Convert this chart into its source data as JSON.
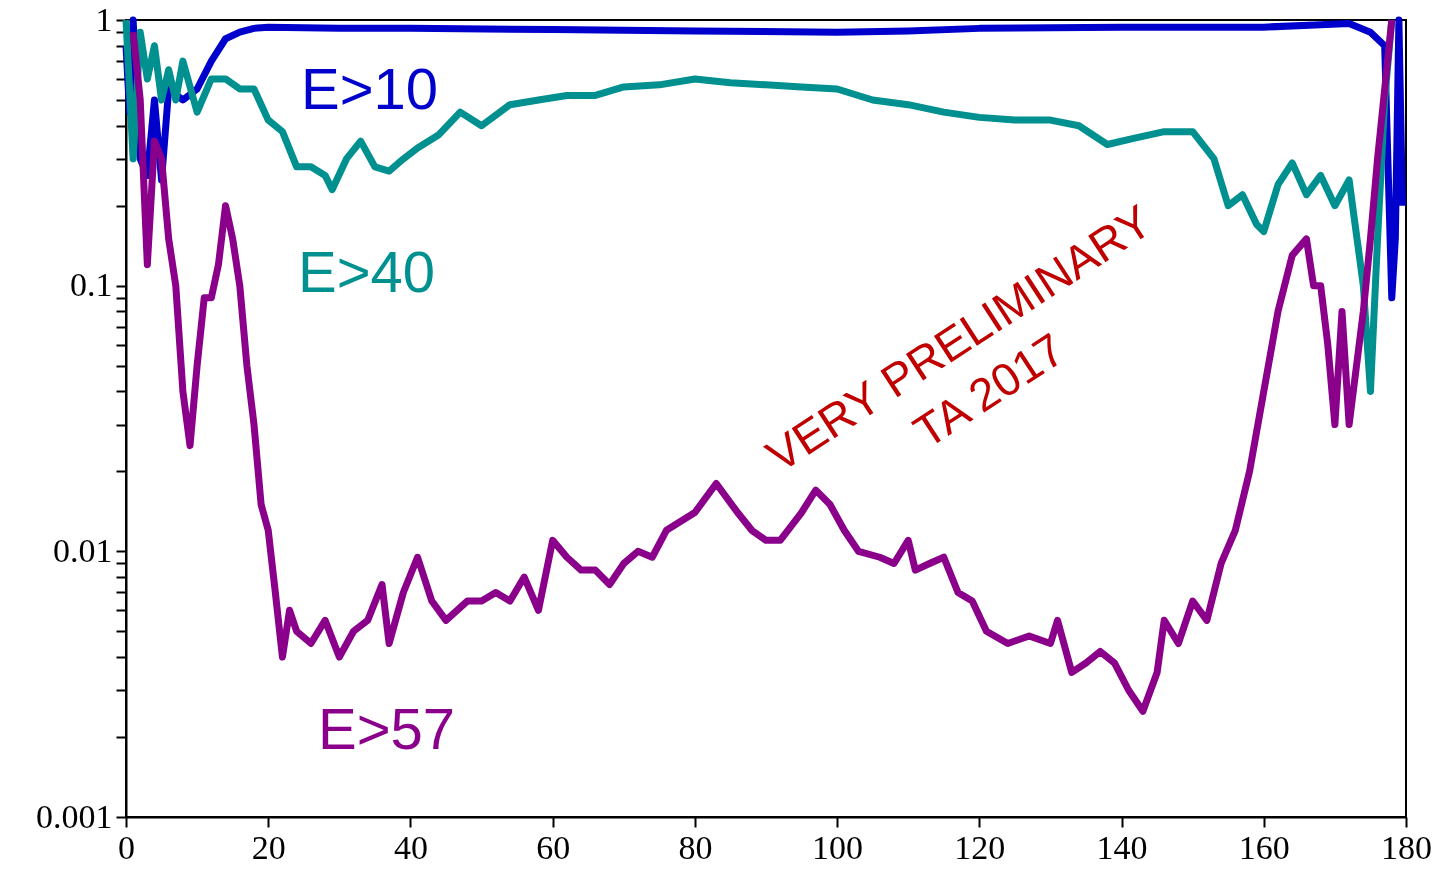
{
  "chart_data": {
    "type": "line",
    "log": true,
    "xlim": [
      0,
      180
    ],
    "ylim": [
      0.001,
      1
    ],
    "xticks": [
      0,
      20,
      40,
      60,
      80,
      100,
      120,
      140,
      160,
      180
    ],
    "yticks": [
      {
        "value": 0.001,
        "label": "0.001"
      },
      {
        "value": 0.002,
        "label": null
      },
      {
        "value": 0.003,
        "label": null
      },
      {
        "value": 0.004,
        "label": null
      },
      {
        "value": 0.005,
        "label": null
      },
      {
        "value": 0.006,
        "label": null
      },
      {
        "value": 0.007,
        "label": null
      },
      {
        "value": 0.008,
        "label": null
      },
      {
        "value": 0.009,
        "label": null
      },
      {
        "value": 0.01,
        "label": "0.01"
      },
      {
        "value": 0.02,
        "label": null
      },
      {
        "value": 0.03,
        "label": null
      },
      {
        "value": 0.04,
        "label": null
      },
      {
        "value": 0.05,
        "label": null
      },
      {
        "value": 0.06,
        "label": null
      },
      {
        "value": 0.07,
        "label": null
      },
      {
        "value": 0.08,
        "label": null
      },
      {
        "value": 0.09,
        "label": null
      },
      {
        "value": 0.1,
        "label": "0.1"
      },
      {
        "value": 0.2,
        "label": null
      },
      {
        "value": 0.3,
        "label": null
      },
      {
        "value": 0.4,
        "label": null
      },
      {
        "value": 0.5,
        "label": null
      },
      {
        "value": 0.6,
        "label": null
      },
      {
        "value": 0.7,
        "label": null
      },
      {
        "value": 0.8,
        "label": null
      },
      {
        "value": 0.9,
        "label": null
      },
      {
        "value": 1,
        "label": "1"
      }
    ],
    "grid": false,
    "line_style": "solid",
    "marker": "none",
    "annotations": [
      "VERY PRELIMINARY",
      "TA 2017"
    ],
    "series": [
      {
        "name": "E>10",
        "color": "#0000cc",
        "x": [
          0,
          0.5,
          1,
          2,
          3,
          4,
          5,
          6,
          8,
          10,
          12,
          14,
          16,
          18,
          20,
          30,
          40,
          60,
          80,
          100,
          110,
          120,
          140,
          160,
          168,
          172,
          175,
          177,
          178,
          178.5,
          179,
          179.5
        ],
        "values": [
          0.8,
          0.45,
          1.0,
          0.3,
          0.26,
          0.5,
          0.25,
          0.55,
          0.5,
          0.55,
          0.7,
          0.85,
          0.9,
          0.93,
          0.94,
          0.93,
          0.93,
          0.92,
          0.91,
          0.9,
          0.91,
          0.93,
          0.94,
          0.94,
          0.96,
          0.97,
          0.9,
          0.8,
          0.09,
          0.15,
          1.0,
          0.2
        ]
      },
      {
        "name": "E>40",
        "color": "#009090",
        "x": [
          0,
          1,
          2,
          3,
          4,
          5,
          6,
          7,
          8,
          10,
          12,
          14,
          16,
          18,
          20,
          22,
          24,
          26,
          28,
          29,
          31,
          33,
          35,
          37,
          39,
          41,
          44,
          47,
          50,
          54,
          58,
          62,
          66,
          70,
          75,
          80,
          85,
          90,
          95,
          100,
          105,
          110,
          115,
          120,
          125,
          130,
          134,
          138,
          142,
          146,
          150,
          153,
          155,
          157,
          159,
          160,
          162,
          164,
          166,
          168,
          170,
          172,
          174,
          175,
          176,
          177,
          178
        ],
        "values": [
          1.0,
          0.3,
          0.9,
          0.6,
          0.8,
          0.5,
          0.65,
          0.5,
          0.7,
          0.45,
          0.6,
          0.6,
          0.55,
          0.55,
          0.42,
          0.38,
          0.28,
          0.28,
          0.26,
          0.23,
          0.3,
          0.35,
          0.28,
          0.27,
          0.3,
          0.33,
          0.37,
          0.45,
          0.4,
          0.48,
          0.5,
          0.52,
          0.52,
          0.56,
          0.57,
          0.6,
          0.58,
          0.57,
          0.56,
          0.55,
          0.5,
          0.48,
          0.45,
          0.43,
          0.42,
          0.42,
          0.4,
          0.34,
          0.36,
          0.38,
          0.38,
          0.3,
          0.2,
          0.22,
          0.17,
          0.16,
          0.24,
          0.29,
          0.22,
          0.26,
          0.2,
          0.25,
          0.1,
          0.04,
          0.15,
          0.5,
          1.0
        ]
      },
      {
        "name": "E>57",
        "color": "#8b008b",
        "x": [
          1,
          2,
          3,
          4,
          5,
          6,
          7,
          8,
          9,
          10,
          11,
          12,
          13,
          14,
          15,
          16,
          17,
          18,
          19,
          20,
          21,
          22,
          23,
          24,
          26,
          28,
          30,
          32,
          34,
          36,
          37,
          39,
          41,
          43,
          45,
          48,
          50,
          52,
          54,
          56,
          58,
          60,
          62,
          64,
          66,
          68,
          70,
          72,
          74,
          76,
          80,
          83,
          86,
          88,
          90,
          92,
          95,
          97,
          99,
          101,
          103,
          106,
          108,
          110,
          111,
          113,
          115,
          117,
          119,
          121,
          124,
          127,
          130,
          131,
          133,
          135,
          137,
          139,
          141,
          143,
          145,
          146,
          148,
          150,
          152,
          154,
          156,
          158,
          160,
          162,
          164,
          166,
          167,
          168,
          169,
          170,
          171,
          172,
          174,
          175,
          176,
          178
        ],
        "values": [
          0.9,
          0.5,
          0.12,
          0.35,
          0.3,
          0.15,
          0.1,
          0.04,
          0.025,
          0.05,
          0.09,
          0.09,
          0.12,
          0.2,
          0.15,
          0.1,
          0.05,
          0.03,
          0.015,
          0.012,
          0.007,
          0.004,
          0.006,
          0.005,
          0.0045,
          0.0055,
          0.004,
          0.005,
          0.0055,
          0.0075,
          0.0045,
          0.007,
          0.0095,
          0.0065,
          0.0055,
          0.0065,
          0.0065,
          0.007,
          0.0065,
          0.008,
          0.006,
          0.011,
          0.0095,
          0.0085,
          0.0085,
          0.0075,
          0.009,
          0.01,
          0.0095,
          0.012,
          0.014,
          0.018,
          0.014,
          0.012,
          0.011,
          0.011,
          0.014,
          0.017,
          0.015,
          0.012,
          0.01,
          0.0095,
          0.009,
          0.011,
          0.0085,
          0.009,
          0.0095,
          0.007,
          0.0065,
          0.005,
          0.0045,
          0.0048,
          0.0045,
          0.0055,
          0.0035,
          0.0038,
          0.0042,
          0.0038,
          0.003,
          0.0025,
          0.0035,
          0.0055,
          0.0045,
          0.0065,
          0.0055,
          0.009,
          0.012,
          0.02,
          0.04,
          0.08,
          0.13,
          0.15,
          0.1,
          0.1,
          0.06,
          0.03,
          0.08,
          0.03,
          0.08,
          0.15,
          0.3,
          1.0
        ]
      }
    ]
  }
}
